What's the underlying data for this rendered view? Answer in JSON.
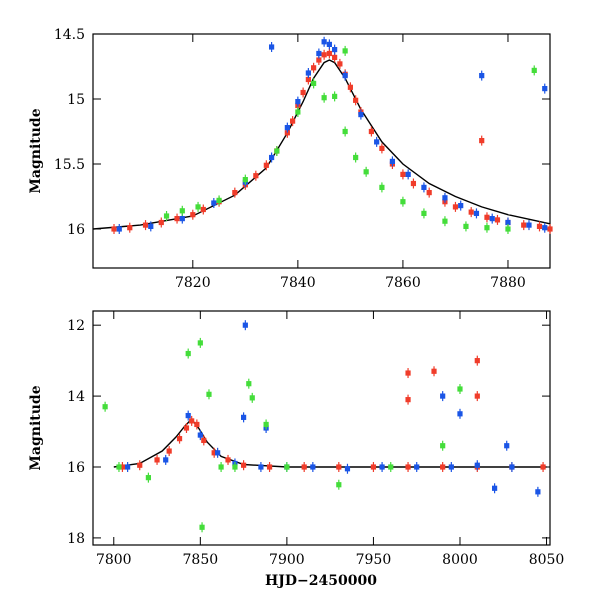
{
  "colors": {
    "blue": "#1a55e6",
    "red": "#f03c2a",
    "green": "#44dd3a",
    "model": "#000000"
  },
  "chart_data": [
    {
      "type": "scatter",
      "panel": "top",
      "title": "",
      "xlabel": "",
      "ylabel": "Magnitude",
      "xlim": [
        7801,
        7888
      ],
      "ylim": [
        16.3,
        14.5
      ],
      "y_inverted": true,
      "xticks": [
        7820,
        7840,
        7860,
        7880
      ],
      "yticks": [
        14.5,
        15,
        15.5,
        16
      ],
      "ytick_labels": [
        "14.5",
        "15",
        "15.5",
        "16"
      ],
      "series": [
        {
          "color": "red",
          "x": [
            7805,
            7808,
            7811,
            7814,
            7817,
            7820,
            7822,
            7825,
            7828,
            7830,
            7832,
            7834,
            7836,
            7838,
            7839,
            7840,
            7841,
            7842,
            7843,
            7844,
            7845,
            7846,
            7847,
            7848,
            7849,
            7850,
            7851,
            7852,
            7854,
            7856,
            7858,
            7860,
            7862,
            7865,
            7868,
            7870,
            7873,
            7876,
            7878,
            7880,
            7883,
            7886,
            7888
          ],
          "y": [
            16.0,
            15.99,
            15.97,
            15.95,
            15.92,
            15.89,
            15.85,
            15.79,
            15.72,
            15.66,
            15.59,
            15.51,
            15.4,
            15.26,
            15.17,
            15.05,
            14.95,
            14.85,
            14.76,
            14.7,
            14.66,
            14.65,
            14.68,
            14.73,
            14.81,
            14.91,
            15.01,
            15.1,
            15.25,
            15.38,
            15.5,
            15.58,
            15.65,
            15.72,
            15.79,
            15.83,
            15.87,
            15.91,
            15.93,
            15.95,
            15.97,
            15.98,
            16.0
          ]
        },
        {
          "color": "blue",
          "x": [
            7806,
            7812,
            7818,
            7824,
            7830,
            7835,
            7838,
            7840,
            7842,
            7844,
            7845,
            7846,
            7847,
            7849,
            7852,
            7855,
            7858,
            7861,
            7864,
            7868,
            7871,
            7874,
            7877,
            7880,
            7884,
            7887
          ],
          "y": [
            16.0,
            15.98,
            15.92,
            15.8,
            15.64,
            15.45,
            15.22,
            15.02,
            14.8,
            14.65,
            14.56,
            14.58,
            14.62,
            14.82,
            15.12,
            15.33,
            15.48,
            15.58,
            15.68,
            15.76,
            15.82,
            15.88,
            15.92,
            15.95,
            15.97,
            15.99
          ]
        },
        {
          "color": "green",
          "x": [
            7815,
            7818,
            7821,
            7825,
            7830,
            7836,
            7840,
            7843,
            7845,
            7847,
            7849,
            7851,
            7853,
            7856,
            7860,
            7864,
            7868,
            7872,
            7876,
            7880
          ],
          "y": [
            15.9,
            15.86,
            15.83,
            15.78,
            15.62,
            15.4,
            15.1,
            14.88,
            14.99,
            14.98,
            15.25,
            15.45,
            15.56,
            15.68,
            15.79,
            15.88,
            15.94,
            15.98,
            15.99,
            16.0
          ]
        },
        {
          "color": "blue",
          "x": [
            7835,
            7875,
            7887
          ],
          "y": [
            14.6,
            14.82,
            14.92
          ],
          "note_outliers": true
        },
        {
          "color": "red",
          "x": [
            7875
          ],
          "y": [
            15.32
          ]
        },
        {
          "color": "green",
          "x": [
            7849,
            7885
          ],
          "y": [
            14.63,
            14.78
          ]
        }
      ],
      "model": {
        "x": [
          7801,
          7810,
          7820,
          7828,
          7834,
          7838,
          7841,
          7843,
          7845,
          7846,
          7847,
          7849,
          7852,
          7856,
          7860,
          7865,
          7870,
          7875,
          7880,
          7888
        ],
        "y": [
          16.0,
          15.97,
          15.9,
          15.74,
          15.53,
          15.26,
          15.02,
          14.84,
          14.72,
          14.7,
          14.72,
          14.84,
          15.08,
          15.33,
          15.5,
          15.65,
          15.75,
          15.83,
          15.89,
          15.96
        ]
      }
    },
    {
      "type": "scatter",
      "panel": "bottom",
      "title": "",
      "xlabel": "HJD−2450000",
      "ylabel": "Magnitude",
      "xlim": [
        7788,
        8052
      ],
      "ylim": [
        18.2,
        11.6
      ],
      "y_inverted": true,
      "xticks": [
        7800,
        7850,
        7900,
        7950,
        8000,
        8050
      ],
      "yticks": [
        12,
        14,
        16,
        18
      ],
      "ytick_labels": [
        "12",
        "14",
        "16",
        "18"
      ],
      "series": [
        {
          "color": "red",
          "x": [
            7805,
            7815,
            7825,
            7832,
            7838,
            7842,
            7845,
            7848,
            7852,
            7858,
            7866,
            7875,
            7890,
            7910,
            7930,
            7950,
            7970,
            7990,
            8010,
            8030,
            8048
          ],
          "y": [
            16.0,
            15.95,
            15.8,
            15.55,
            15.2,
            14.9,
            14.7,
            14.8,
            15.25,
            15.6,
            15.8,
            15.95,
            16.0,
            16.0,
            16.0,
            16.0,
            16.0,
            16.0,
            16.0,
            16.0,
            16.0
          ]
        },
        {
          "color": "red",
          "x": [
            7970,
            7985,
            8010,
            8010,
            7970
          ],
          "y": [
            13.35,
            13.3,
            13.0,
            14.0,
            14.1
          ]
        },
        {
          "color": "blue",
          "x": [
            7808,
            7830,
            7843,
            7850,
            7860,
            7870,
            7885,
            7900,
            7915,
            7935,
            7955,
            7975,
            7995,
            8010,
            8030
          ],
          "y": [
            16.0,
            15.8,
            14.55,
            15.1,
            15.6,
            15.9,
            16.0,
            16.0,
            16.0,
            16.05,
            16.0,
            16.0,
            16.0,
            15.95,
            16.0
          ]
        },
        {
          "color": "blue",
          "x": [
            7876,
            7875,
            7888,
            7990,
            8000,
            8020,
            8027,
            8045
          ],
          "y": [
            12.0,
            14.6,
            14.9,
            14.0,
            14.5,
            16.6,
            15.4,
            16.7
          ]
        },
        {
          "color": "green",
          "x": [
            7795,
            7803,
            7820,
            7843,
            7850,
            7855,
            7862,
            7870,
            7900,
            7930,
            7960,
            7990,
            8000
          ],
          "y": [
            14.3,
            16.0,
            16.3,
            12.8,
            12.5,
            13.95,
            16.0,
            16.0,
            16.0,
            16.5,
            16.0,
            15.4,
            13.8
          ]
        },
        {
          "color": "green",
          "x": [
            7851,
            7878,
            7880,
            7888
          ],
          "y": [
            17.7,
            13.65,
            14.05,
            14.8
          ]
        }
      ],
      "model": {
        "x": [
          7800,
          7815,
          7828,
          7836,
          7841,
          7844,
          7846,
          7849,
          7854,
          7862,
          7875,
          7900,
          8050
        ],
        "y": [
          16.0,
          15.9,
          15.55,
          15.15,
          14.85,
          14.7,
          14.72,
          14.9,
          15.3,
          15.7,
          15.93,
          16.0,
          16.0
        ]
      }
    }
  ]
}
